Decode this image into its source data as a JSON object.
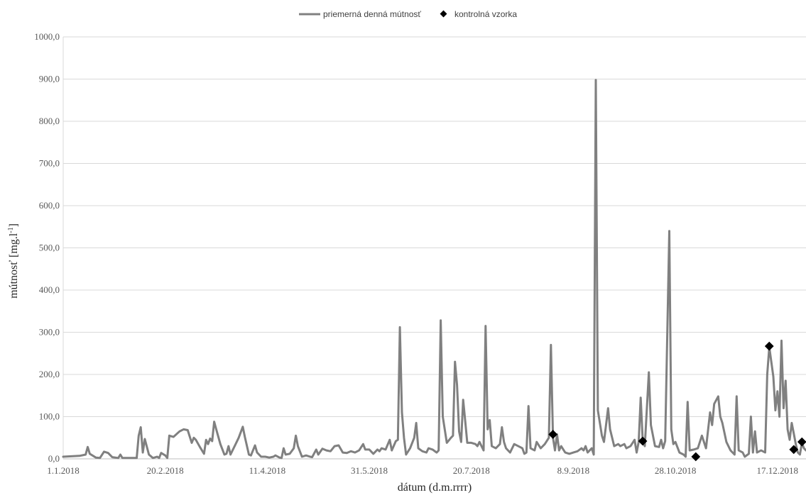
{
  "chart_data": {
    "type": "line",
    "title": "",
    "xlabel": "dátum  (d.m.rrrr)",
    "ylabel": "mútnosť  [mg.l-1]",
    "ylabel_main": "mútnosť  [mg.l",
    "ylabel_sup": "-1",
    "ylabel_end": "]",
    "ylim": [
      0,
      1000
    ],
    "xlim": [
      "2018-01-01",
      "2018-12-31"
    ],
    "yticks": [
      0,
      100,
      200,
      300,
      400,
      500,
      600,
      700,
      800,
      900,
      1000
    ],
    "ytick_labels": [
      "0,0",
      "100,0",
      "200,0",
      "300,0",
      "400,0",
      "500,0",
      "600,0",
      "700,0",
      "800,0",
      "900,0",
      "1000,0"
    ],
    "xticks": [
      "2018-01-01",
      "2018-02-20",
      "2018-04-11",
      "2018-05-31",
      "2018-07-20",
      "2018-09-08",
      "2018-10-28",
      "2018-12-17"
    ],
    "xtick_labels": [
      "1.1.2018",
      "20.2.2018",
      "11.4.2018",
      "31.5.2018",
      "20.7.2018",
      "8.9.2018",
      "28.10.2018",
      "17.12.2018"
    ],
    "grid": "horizontal",
    "legend_position": "top-center",
    "colors": {
      "line": "#808080",
      "marker": "#000000",
      "grid": "#d9d9d9"
    },
    "series": [
      {
        "name": "priemerná denná mútnosť",
        "kind": "line",
        "points": [
          [
            "2018-01-01",
            5
          ],
          [
            "2018-01-05",
            6
          ],
          [
            "2018-01-09",
            7
          ],
          [
            "2018-01-12",
            10
          ],
          [
            "2018-01-13",
            28
          ],
          [
            "2018-01-14",
            12
          ],
          [
            "2018-01-17",
            3
          ],
          [
            "2018-01-19",
            2
          ],
          [
            "2018-01-21",
            17
          ],
          [
            "2018-01-23",
            14
          ],
          [
            "2018-01-25",
            4
          ],
          [
            "2018-01-28",
            2
          ],
          [
            "2018-01-29",
            10
          ],
          [
            "2018-01-30",
            2
          ],
          [
            "2018-02-02",
            2
          ],
          [
            "2018-02-06",
            2
          ],
          [
            "2018-02-07",
            55
          ],
          [
            "2018-02-08",
            75
          ],
          [
            "2018-02-09",
            15
          ],
          [
            "2018-02-10",
            47
          ],
          [
            "2018-02-12",
            10
          ],
          [
            "2018-02-14",
            2
          ],
          [
            "2018-02-16",
            5
          ],
          [
            "2018-02-17",
            2
          ],
          [
            "2018-02-18",
            14
          ],
          [
            "2018-02-20",
            8
          ],
          [
            "2018-02-21",
            2
          ],
          [
            "2018-02-22",
            55
          ],
          [
            "2018-02-24",
            52
          ],
          [
            "2018-02-27",
            65
          ],
          [
            "2018-03-01",
            70
          ],
          [
            "2018-03-03",
            68
          ],
          [
            "2018-03-05",
            38
          ],
          [
            "2018-03-06",
            50
          ],
          [
            "2018-03-07",
            45
          ],
          [
            "2018-03-09",
            28
          ],
          [
            "2018-03-11",
            12
          ],
          [
            "2018-03-12",
            45
          ],
          [
            "2018-03-13",
            35
          ],
          [
            "2018-03-14",
            48
          ],
          [
            "2018-03-15",
            42
          ],
          [
            "2018-03-16",
            88
          ],
          [
            "2018-03-17",
            70
          ],
          [
            "2018-03-19",
            35
          ],
          [
            "2018-03-21",
            10
          ],
          [
            "2018-03-22",
            12
          ],
          [
            "2018-03-23",
            30
          ],
          [
            "2018-03-24",
            10
          ],
          [
            "2018-03-26",
            30
          ],
          [
            "2018-03-28",
            50
          ],
          [
            "2018-03-30",
            76
          ],
          [
            "2018-03-31",
            52
          ],
          [
            "2018-04-02",
            10
          ],
          [
            "2018-04-03",
            8
          ],
          [
            "2018-04-05",
            32
          ],
          [
            "2018-04-06",
            15
          ],
          [
            "2018-04-08",
            5
          ],
          [
            "2018-04-10",
            5
          ],
          [
            "2018-04-12",
            3
          ],
          [
            "2018-04-14",
            5
          ],
          [
            "2018-04-15",
            8
          ],
          [
            "2018-04-17",
            3
          ],
          [
            "2018-04-18",
            2
          ],
          [
            "2018-04-19",
            25
          ],
          [
            "2018-04-20",
            10
          ],
          [
            "2018-04-22",
            12
          ],
          [
            "2018-04-24",
            25
          ],
          [
            "2018-04-25",
            55
          ],
          [
            "2018-04-26",
            30
          ],
          [
            "2018-04-28",
            5
          ],
          [
            "2018-04-30",
            8
          ],
          [
            "2018-05-02",
            5
          ],
          [
            "2018-05-03",
            4
          ],
          [
            "2018-05-05",
            22
          ],
          [
            "2018-05-06",
            10
          ],
          [
            "2018-05-08",
            24
          ],
          [
            "2018-05-10",
            20
          ],
          [
            "2018-05-12",
            18
          ],
          [
            "2018-05-14",
            30
          ],
          [
            "2018-05-16",
            32
          ],
          [
            "2018-05-18",
            15
          ],
          [
            "2018-05-20",
            14
          ],
          [
            "2018-05-22",
            18
          ],
          [
            "2018-05-24",
            15
          ],
          [
            "2018-05-26",
            20
          ],
          [
            "2018-05-28",
            35
          ],
          [
            "2018-05-29",
            22
          ],
          [
            "2018-05-31",
            22
          ],
          [
            "2018-06-02",
            12
          ],
          [
            "2018-06-04",
            22
          ],
          [
            "2018-06-05",
            18
          ],
          [
            "2018-06-06",
            25
          ],
          [
            "2018-06-08",
            22
          ],
          [
            "2018-06-10",
            45
          ],
          [
            "2018-06-11",
            20
          ],
          [
            "2018-06-13",
            42
          ],
          [
            "2018-06-14",
            45
          ],
          [
            "2018-06-15",
            312
          ],
          [
            "2018-06-16",
            110
          ],
          [
            "2018-06-17",
            50
          ],
          [
            "2018-06-18",
            10
          ],
          [
            "2018-06-20",
            25
          ],
          [
            "2018-06-22",
            50
          ],
          [
            "2018-06-23",
            85
          ],
          [
            "2018-06-24",
            25
          ],
          [
            "2018-06-26",
            18
          ],
          [
            "2018-06-28",
            15
          ],
          [
            "2018-06-29",
            25
          ],
          [
            "2018-07-01",
            22
          ],
          [
            "2018-07-03",
            15
          ],
          [
            "2018-07-04",
            20
          ],
          [
            "2018-07-05",
            328
          ],
          [
            "2018-07-06",
            100
          ],
          [
            "2018-07-08",
            38
          ],
          [
            "2018-07-10",
            50
          ],
          [
            "2018-07-11",
            55
          ],
          [
            "2018-07-12",
            230
          ],
          [
            "2018-07-13",
            175
          ],
          [
            "2018-07-14",
            65
          ],
          [
            "2018-07-15",
            40
          ],
          [
            "2018-07-16",
            140
          ],
          [
            "2018-07-17",
            90
          ],
          [
            "2018-07-18",
            38
          ],
          [
            "2018-07-20",
            38
          ],
          [
            "2018-07-22",
            35
          ],
          [
            "2018-07-23",
            30
          ],
          [
            "2018-07-24",
            40
          ],
          [
            "2018-07-26",
            20
          ],
          [
            "2018-07-27",
            315
          ],
          [
            "2018-07-28",
            70
          ],
          [
            "2018-07-29",
            92
          ],
          [
            "2018-07-30",
            30
          ],
          [
            "2018-08-01",
            25
          ],
          [
            "2018-08-03",
            35
          ],
          [
            "2018-08-04",
            75
          ],
          [
            "2018-08-05",
            40
          ],
          [
            "2018-08-06",
            25
          ],
          [
            "2018-08-08",
            15
          ],
          [
            "2018-08-10",
            35
          ],
          [
            "2018-08-12",
            30
          ],
          [
            "2018-08-14",
            25
          ],
          [
            "2018-08-15",
            12
          ],
          [
            "2018-08-16",
            15
          ],
          [
            "2018-08-17",
            125
          ],
          [
            "2018-08-18",
            25
          ],
          [
            "2018-08-20",
            20
          ],
          [
            "2018-08-21",
            40
          ],
          [
            "2018-08-23",
            25
          ],
          [
            "2018-08-25",
            35
          ],
          [
            "2018-08-27",
            50
          ],
          [
            "2018-08-28",
            270
          ],
          [
            "2018-08-29",
            50
          ],
          [
            "2018-08-30",
            20
          ],
          [
            "2018-08-31",
            58
          ],
          [
            "2018-09-01",
            20
          ],
          [
            "2018-09-02",
            30
          ],
          [
            "2018-09-04",
            15
          ],
          [
            "2018-09-06",
            12
          ],
          [
            "2018-09-08",
            15
          ],
          [
            "2018-09-10",
            18
          ],
          [
            "2018-09-12",
            25
          ],
          [
            "2018-09-13",
            20
          ],
          [
            "2018-09-14",
            30
          ],
          [
            "2018-09-15",
            15
          ],
          [
            "2018-09-17",
            25
          ],
          [
            "2018-09-18",
            10
          ],
          [
            "2018-09-19",
            898
          ],
          [
            "2018-09-20",
            115
          ],
          [
            "2018-09-22",
            55
          ],
          [
            "2018-09-23",
            40
          ],
          [
            "2018-09-24",
            80
          ],
          [
            "2018-09-25",
            120
          ],
          [
            "2018-09-26",
            70
          ],
          [
            "2018-09-28",
            30
          ],
          [
            "2018-09-30",
            35
          ],
          [
            "2018-10-01",
            30
          ],
          [
            "2018-10-03",
            35
          ],
          [
            "2018-10-04",
            25
          ],
          [
            "2018-10-06",
            30
          ],
          [
            "2018-10-08",
            45
          ],
          [
            "2018-10-09",
            15
          ],
          [
            "2018-10-10",
            40
          ],
          [
            "2018-10-11",
            145
          ],
          [
            "2018-10-12",
            42
          ],
          [
            "2018-10-13",
            30
          ],
          [
            "2018-10-15",
            205
          ],
          [
            "2018-10-16",
            80
          ],
          [
            "2018-10-18",
            30
          ],
          [
            "2018-10-20",
            28
          ],
          [
            "2018-10-21",
            45
          ],
          [
            "2018-10-22",
            25
          ],
          [
            "2018-10-23",
            42
          ],
          [
            "2018-10-25",
            540
          ],
          [
            "2018-10-26",
            70
          ],
          [
            "2018-10-27",
            35
          ],
          [
            "2018-10-28",
            40
          ],
          [
            "2018-10-30",
            15
          ],
          [
            "2018-11-01",
            10
          ],
          [
            "2018-11-02",
            5
          ],
          [
            "2018-11-03",
            135
          ],
          [
            "2018-11-04",
            20
          ],
          [
            "2018-11-06",
            22
          ],
          [
            "2018-11-08",
            25
          ],
          [
            "2018-11-10",
            55
          ],
          [
            "2018-11-12",
            25
          ],
          [
            "2018-11-14",
            110
          ],
          [
            "2018-11-15",
            80
          ],
          [
            "2018-11-16",
            130
          ],
          [
            "2018-11-18",
            148
          ],
          [
            "2018-11-19",
            100
          ],
          [
            "2018-11-20",
            85
          ],
          [
            "2018-11-22",
            40
          ],
          [
            "2018-11-24",
            20
          ],
          [
            "2018-11-26",
            10
          ],
          [
            "2018-11-27",
            148
          ],
          [
            "2018-11-28",
            20
          ],
          [
            "2018-11-30",
            15
          ],
          [
            "2018-12-01",
            5
          ],
          [
            "2018-12-03",
            12
          ],
          [
            "2018-12-04",
            100
          ],
          [
            "2018-12-05",
            15
          ],
          [
            "2018-12-06",
            65
          ],
          [
            "2018-12-07",
            15
          ],
          [
            "2018-12-09",
            20
          ],
          [
            "2018-12-11",
            15
          ],
          [
            "2018-12-12",
            200
          ],
          [
            "2018-12-13",
            265
          ],
          [
            "2018-12-15",
            195
          ],
          [
            "2018-12-16",
            115
          ],
          [
            "2018-12-17",
            160
          ],
          [
            "2018-12-18",
            100
          ],
          [
            "2018-12-19",
            280
          ],
          [
            "2018-12-20",
            120
          ],
          [
            "2018-12-21",
            185
          ],
          [
            "2018-12-22",
            70
          ],
          [
            "2018-12-23",
            45
          ],
          [
            "2018-12-24",
            85
          ],
          [
            "2018-12-25",
            60
          ],
          [
            "2018-12-26",
            35
          ],
          [
            "2018-12-27",
            15
          ],
          [
            "2018-12-28",
            10
          ],
          [
            "2018-12-29",
            38
          ],
          [
            "2018-12-30",
            25
          ],
          [
            "2018-12-31",
            20
          ]
        ]
      },
      {
        "name": "kontrolná vzorka",
        "kind": "marker",
        "points": [
          [
            "2018-08-29",
            58
          ],
          [
            "2018-10-12",
            42
          ],
          [
            "2018-11-07",
            5
          ],
          [
            "2018-12-13",
            267
          ],
          [
            "2018-12-25",
            22
          ],
          [
            "2018-12-29",
            40
          ]
        ]
      }
    ]
  }
}
